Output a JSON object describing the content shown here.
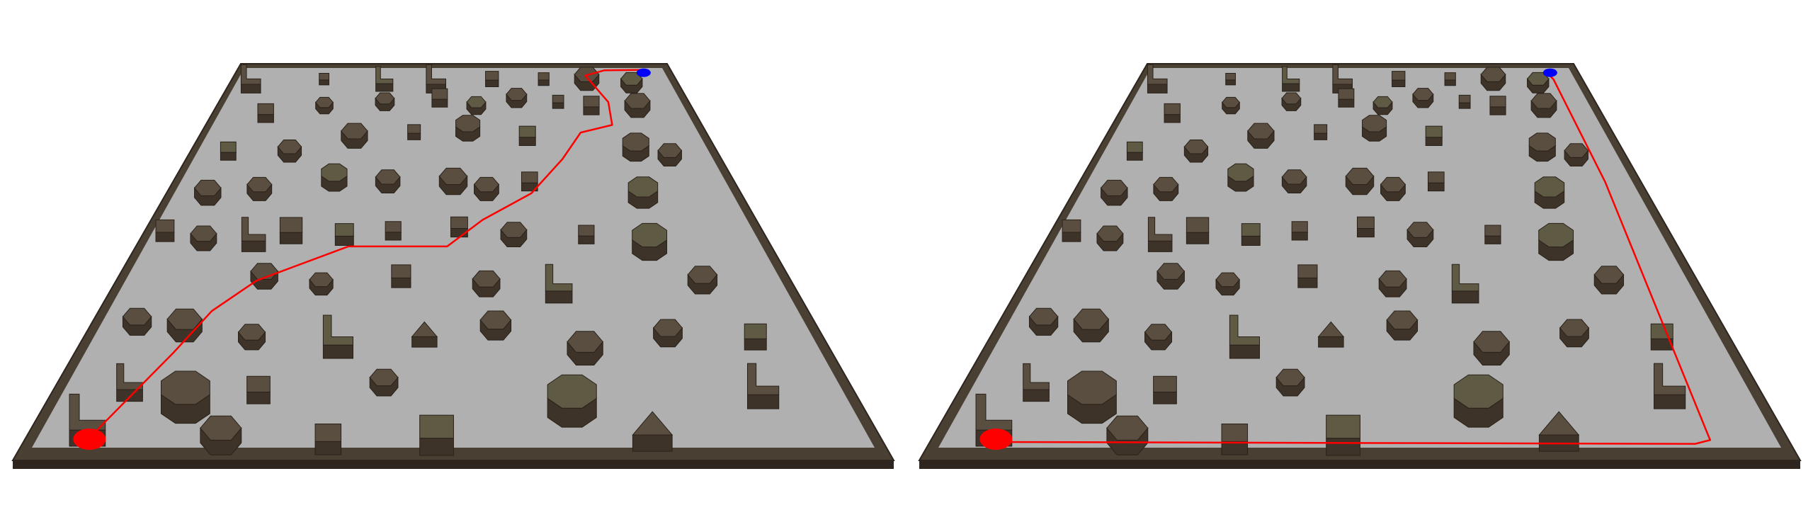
{
  "colors": {
    "background": "#ffffff",
    "floor": "#b0b0b0",
    "wall": "#4a3f33",
    "wall_dark": "#2e261e",
    "obstacle_top": "#5a4e40",
    "obstacle_top_mossy": "#5e5a44",
    "obstacle_side": "#3d3328",
    "obstacle_edge": "#2a221a",
    "path": "#ff0000",
    "start_marker": "#ff0000",
    "goal_marker": "#0000ff"
  },
  "panels": [
    {
      "id": "left",
      "path_style": "diagonal"
    },
    {
      "id": "right",
      "path_style": "perimeter"
    }
  ]
}
